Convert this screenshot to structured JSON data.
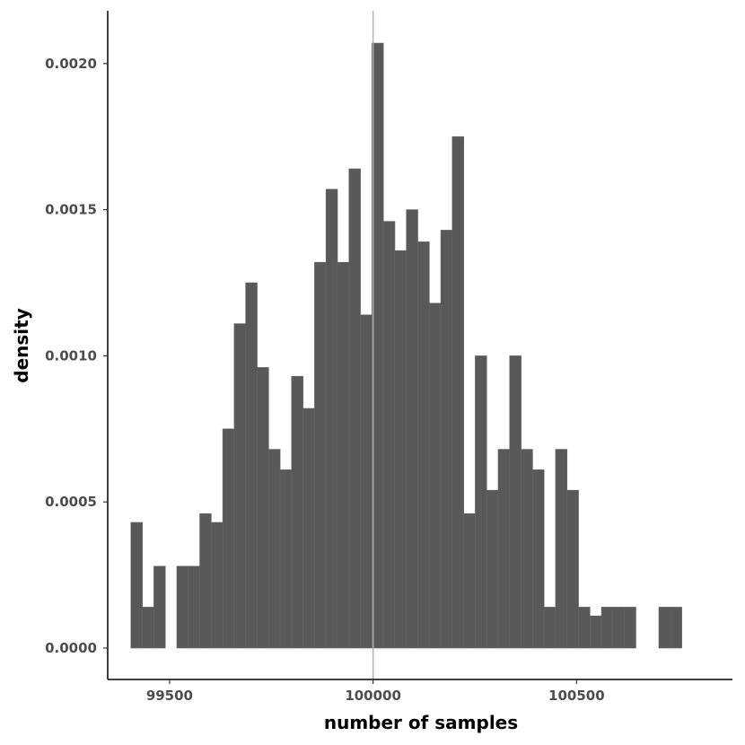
{
  "chart_data": {
    "type": "bar",
    "subtype": "histogram",
    "title": "",
    "xlabel": "number of samples",
    "ylabel": "density",
    "xlim": [
      99348,
      100883
    ],
    "ylim": [
      0,
      0.00215
    ],
    "x_ticks": [
      99500,
      100000,
      100500
    ],
    "x_tick_labels": [
      "99500",
      "100000",
      "100500"
    ],
    "y_ticks": [
      0,
      0.0005,
      0.001,
      0.0015,
      0.002
    ],
    "y_tick_labels": [
      "0.0000",
      "0.0005",
      "0.0010",
      "0.0015",
      "0.0020"
    ],
    "reference_line_x": 100000,
    "grid": false,
    "legend": "none",
    "bar_color": "#595959",
    "bin_width": 28.2,
    "bin_start": 99405,
    "values": [
      0.00043,
      0.00014,
      0.00028,
      0.0,
      0.00028,
      0.00028,
      0.00046,
      0.00043,
      0.00075,
      0.00111,
      0.00125,
      0.00096,
      0.00068,
      0.00061,
      0.00093,
      0.00082,
      0.00132,
      0.00157,
      0.00132,
      0.00164,
      0.00114,
      0.00207,
      0.00146,
      0.00136,
      0.0015,
      0.00139,
      0.00118,
      0.00143,
      0.00175,
      0.00046,
      0.001,
      0.00054,
      0.00068,
      0.001,
      0.00068,
      0.00061,
      0.00014,
      0.00068,
      0.00054,
      0.00014,
      0.00011,
      0.00014,
      0.00014,
      0.00014,
      0.0,
      0.0,
      0.00014,
      0.00014
    ]
  }
}
